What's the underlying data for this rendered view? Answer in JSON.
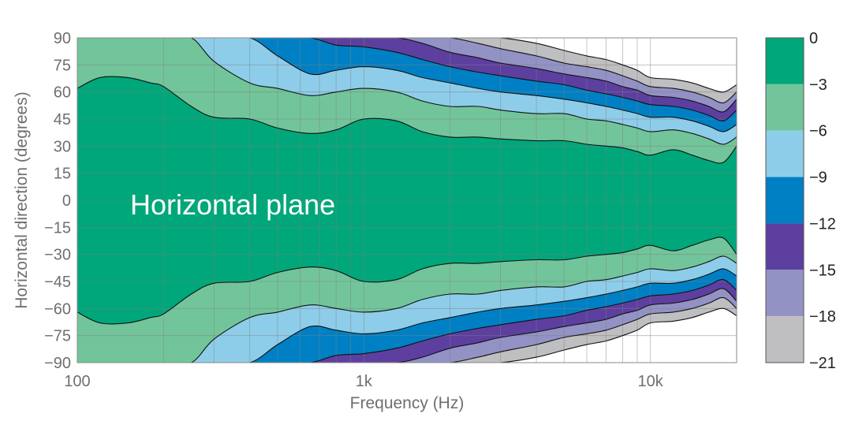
{
  "chart_data": {
    "type": "contour",
    "title": "",
    "annotation": "Horizontal plane",
    "xlabel": "Frequency (Hz)",
    "ylabel": "Horizontal direction (degrees)",
    "xscale": "log",
    "xlim": [
      100,
      20000
    ],
    "ylim": [
      -90,
      90
    ],
    "x_ticks": [
      {
        "value": 100,
        "label": "100"
      },
      {
        "value": 1000,
        "label": "1k"
      },
      {
        "value": 10000,
        "label": "10k"
      }
    ],
    "y_ticks": [
      {
        "value": 90,
        "label": "90"
      },
      {
        "value": 75,
        "label": "75"
      },
      {
        "value": 60,
        "label": "60"
      },
      {
        "value": 45,
        "label": "45"
      },
      {
        "value": 30,
        "label": "30"
      },
      {
        "value": 15,
        "label": "15"
      },
      {
        "value": 0,
        "label": "0"
      },
      {
        "value": -15,
        "label": "-15"
      },
      {
        "value": -30,
        "label": "-30"
      },
      {
        "value": -45,
        "label": "-45"
      },
      {
        "value": -60,
        "label": "-60"
      },
      {
        "value": -75,
        "label": "-75"
      },
      {
        "value": -90,
        "label": "-90"
      }
    ],
    "grid": true,
    "colorbar": {
      "levels": [
        0,
        -3,
        -6,
        -9,
        -12,
        -15,
        -18,
        -21
      ],
      "labels": [
        "0",
        "−3",
        "−6",
        "−9",
        "−12",
        "−15",
        "−18",
        "−21"
      ],
      "colors": [
        "#00a77a",
        "#72c59a",
        "#8ecde9",
        "#0080c4",
        "#5d3f9f",
        "#9292c5",
        "#bfbfc1"
      ]
    },
    "frequencies": [
      100,
      120,
      150,
      180,
      200,
      250,
      300,
      400,
      500,
      650,
      800,
      1000,
      1300,
      1600,
      2000,
      2500,
      3000,
      4000,
      5000,
      6000,
      7000,
      8000,
      9000,
      10000,
      12000,
      14000,
      16000,
      18000,
      20000
    ],
    "contour_lines": [
      {
        "level": -3,
        "angles": [
          62,
          68,
          68,
          65,
          63,
          52,
          46,
          45,
          40,
          37,
          39,
          45,
          44,
          38,
          35,
          35,
          34,
          33,
          33,
          31,
          30,
          29,
          27,
          25,
          28,
          25,
          22,
          21,
          30
        ]
      },
      {
        "level": -6,
        "angles": [
          90,
          90,
          90,
          90,
          90,
          90,
          77,
          65,
          62,
          58,
          60,
          62,
          60,
          55,
          52,
          52,
          50,
          48,
          48,
          45,
          44,
          42,
          40,
          38,
          39,
          37,
          34,
          31,
          35
        ]
      },
      {
        "level": -9,
        "angles": [
          90,
          90,
          90,
          90,
          90,
          90,
          90,
          90,
          80,
          70,
          72,
          74,
          72,
          68,
          65,
          62,
          60,
          58,
          56,
          54,
          52,
          50,
          48,
          46,
          46,
          44,
          41,
          38,
          42
        ]
      },
      {
        "level": -12,
        "angles": [
          90,
          90,
          90,
          90,
          90,
          90,
          90,
          90,
          90,
          90,
          86,
          85,
          82,
          78,
          74,
          71,
          69,
          66,
          64,
          61,
          59,
          57,
          55,
          53,
          52,
          50,
          47,
          44,
          50
        ]
      },
      {
        "level": -15,
        "angles": [
          90,
          90,
          90,
          90,
          90,
          90,
          90,
          90,
          90,
          90,
          90,
          90,
          90,
          87,
          82,
          79,
          76,
          73,
          70,
          68,
          66,
          63,
          61,
          58,
          57,
          55,
          52,
          49,
          56
        ]
      },
      {
        "level": -18,
        "angles": [
          90,
          90,
          90,
          90,
          90,
          90,
          90,
          90,
          90,
          90,
          90,
          90,
          90,
          90,
          90,
          87,
          84,
          80,
          76,
          74,
          72,
          69,
          66,
          63,
          62,
          60,
          57,
          54,
          60
        ]
      },
      {
        "level": -21,
        "angles": [
          90,
          90,
          90,
          90,
          90,
          90,
          90,
          90,
          90,
          90,
          90,
          90,
          90,
          90,
          90,
          90,
          90,
          87,
          83,
          80,
          78,
          75,
          72,
          68,
          67,
          65,
          62,
          60,
          64
        ]
      }
    ]
  }
}
